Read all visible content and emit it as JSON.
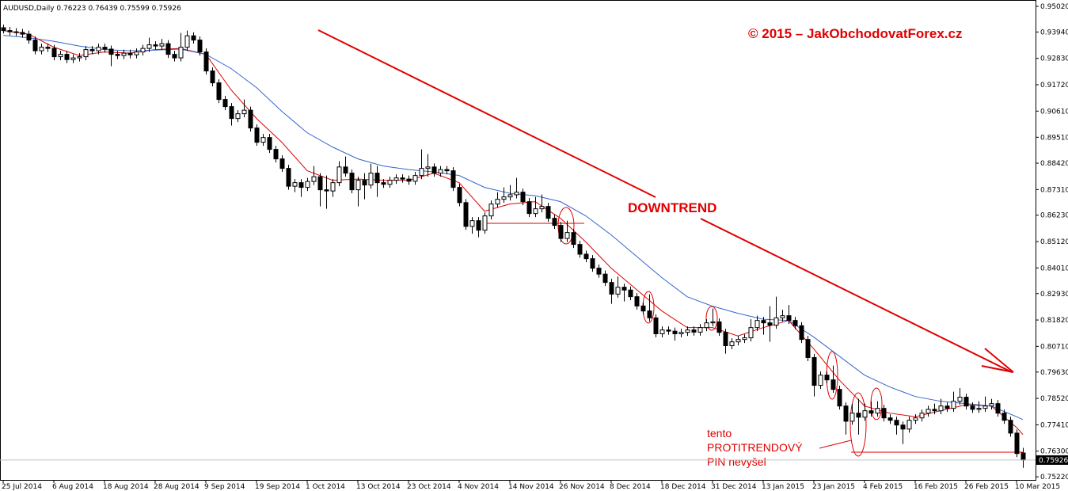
{
  "chart_data": {
    "type": "candlestick",
    "header": "AUDUSD,Daily  0.76223 0.76439 0.75599 0.75926",
    "title": "© 2015 – JakObchodovatForex.cz",
    "annotations": [
      "DOWNTREND",
      "tento",
      "PROTITRENDOVÝ",
      "PIN nevyšel"
    ],
    "ylim": [
      0.7509,
      0.9522
    ],
    "yticks": [
      {
        "value": 0.9502,
        "label": "0.95020"
      },
      {
        "value": 0.9394,
        "label": "0.93940"
      },
      {
        "value": 0.9283,
        "label": "0.92830"
      },
      {
        "value": 0.9172,
        "label": "0.91720"
      },
      {
        "value": 0.9061,
        "label": "0.90610"
      },
      {
        "value": 0.8951,
        "label": "0.89510"
      },
      {
        "value": 0.8842,
        "label": "0.88420"
      },
      {
        "value": 0.8731,
        "label": "0.87310"
      },
      {
        "value": 0.8623,
        "label": "0.86230"
      },
      {
        "value": 0.8512,
        "label": "0.85120"
      },
      {
        "value": 0.8401,
        "label": "0.84010"
      },
      {
        "value": 0.8293,
        "label": "0.82930"
      },
      {
        "value": 0.8182,
        "label": "0.81820"
      },
      {
        "value": 0.8071,
        "label": "0.80710"
      },
      {
        "value": 0.7963,
        "label": "0.79630"
      },
      {
        "value": 0.7852,
        "label": "0.78520"
      },
      {
        "value": 0.7741,
        "label": "0.77410"
      },
      {
        "value": 0.763,
        "label": "0.76300"
      },
      {
        "value": 0.7522,
        "label": "0.75220"
      }
    ],
    "xticks": [
      {
        "value": 0,
        "label": "25 Jul 2014"
      },
      {
        "value": 8,
        "label": "6 Aug 2014"
      },
      {
        "value": 16,
        "label": "18 Aug 2014"
      },
      {
        "value": 24,
        "label": "28 Aug 2014"
      },
      {
        "value": 32,
        "label": "9 Sep 2014"
      },
      {
        "value": 40,
        "label": "19 Sep 2014"
      },
      {
        "value": 48,
        "label": "1 Oct 2014"
      },
      {
        "value": 56,
        "label": "13 Oct 2014"
      },
      {
        "value": 64,
        "label": "23 Oct 2014"
      },
      {
        "value": 72,
        "label": "4 Nov 2014"
      },
      {
        "value": 80,
        "label": "14 Nov 2014"
      },
      {
        "value": 88,
        "label": "26 Nov 2014"
      },
      {
        "value": 96,
        "label": "8 Dec 2014"
      },
      {
        "value": 104,
        "label": "18 Dec 2014"
      },
      {
        "value": 112,
        "label": "31 Dec 2014"
      },
      {
        "value": 120,
        "label": "13 Jan 2015"
      },
      {
        "value": 128,
        "label": "23 Jan 2015"
      },
      {
        "value": 136,
        "label": "4 Feb 2015"
      },
      {
        "value": 144,
        "label": "16 Feb 2015"
      },
      {
        "value": 152,
        "label": "26 Feb 2015"
      },
      {
        "value": 160,
        "label": "10 Mar 2015"
      }
    ],
    "candles": [
      [
        0.9412,
        0.9425,
        0.9388,
        0.94
      ],
      [
        0.94,
        0.9415,
        0.938,
        0.9395
      ],
      [
        0.9395,
        0.941,
        0.9377,
        0.9392
      ],
      [
        0.9392,
        0.9407,
        0.937,
        0.9385
      ],
      [
        0.9385,
        0.94,
        0.9345,
        0.936
      ],
      [
        0.936,
        0.9375,
        0.93,
        0.9315
      ],
      [
        0.9315,
        0.9345,
        0.93,
        0.933
      ],
      [
        0.933,
        0.9345,
        0.931,
        0.9325
      ],
      [
        0.9325,
        0.934,
        0.9275,
        0.929
      ],
      [
        0.929,
        0.9315,
        0.9275,
        0.93
      ],
      [
        0.93,
        0.9315,
        0.9263,
        0.9278
      ],
      [
        0.9278,
        0.93,
        0.9263,
        0.9285
      ],
      [
        0.9285,
        0.9305,
        0.927,
        0.929
      ],
      [
        0.929,
        0.9335,
        0.9275,
        0.932
      ],
      [
        0.932,
        0.9335,
        0.93,
        0.9315
      ],
      [
        0.9315,
        0.9345,
        0.93,
        0.933
      ],
      [
        0.933,
        0.9345,
        0.9307,
        0.9322
      ],
      [
        0.9322,
        0.9337,
        0.925,
        0.93
      ],
      [
        0.93,
        0.9315,
        0.928,
        0.9295
      ],
      [
        0.9295,
        0.932,
        0.928,
        0.9305
      ],
      [
        0.9305,
        0.932,
        0.9283,
        0.9298
      ],
      [
        0.9298,
        0.9325,
        0.9283,
        0.931
      ],
      [
        0.931,
        0.934,
        0.9295,
        0.9325
      ],
      [
        0.9325,
        0.937,
        0.931,
        0.934
      ],
      [
        0.934,
        0.9355,
        0.932,
        0.9335
      ],
      [
        0.9335,
        0.9365,
        0.932,
        0.9345
      ],
      [
        0.9345,
        0.936,
        0.9285,
        0.93
      ],
      [
        0.93,
        0.9315,
        0.927,
        0.9285
      ],
      [
        0.9285,
        0.939,
        0.927,
        0.933
      ],
      [
        0.933,
        0.94,
        0.9315,
        0.9378
      ],
      [
        0.9378,
        0.9393,
        0.9345,
        0.936
      ],
      [
        0.936,
        0.9375,
        0.9295,
        0.931
      ],
      [
        0.931,
        0.9325,
        0.9215,
        0.923
      ],
      [
        0.923,
        0.9245,
        0.9165,
        0.918
      ],
      [
        0.918,
        0.9195,
        0.9095,
        0.911
      ],
      [
        0.911,
        0.9125,
        0.9065,
        0.908
      ],
      [
        0.908,
        0.9095,
        0.9,
        0.903
      ],
      [
        0.903,
        0.9065,
        0.9015,
        0.905
      ],
      [
        0.905,
        0.911,
        0.9035,
        0.9065
      ],
      [
        0.9065,
        0.908,
        0.8975,
        0.899
      ],
      [
        0.899,
        0.9005,
        0.8915,
        0.893
      ],
      [
        0.893,
        0.8965,
        0.8915,
        0.895
      ],
      [
        0.895,
        0.8965,
        0.8885,
        0.89
      ],
      [
        0.89,
        0.8915,
        0.8845,
        0.886
      ],
      [
        0.886,
        0.8875,
        0.8805,
        0.882
      ],
      [
        0.882,
        0.8835,
        0.873,
        0.8745
      ],
      [
        0.8745,
        0.8775,
        0.872,
        0.876
      ],
      [
        0.876,
        0.8775,
        0.87,
        0.874
      ],
      [
        0.874,
        0.878,
        0.8725,
        0.8765
      ],
      [
        0.8765,
        0.883,
        0.875,
        0.8785
      ],
      [
        0.8785,
        0.88,
        0.866,
        0.873
      ],
      [
        0.873,
        0.879,
        0.865,
        0.8725
      ],
      [
        0.8725,
        0.8775,
        0.87,
        0.876
      ],
      [
        0.876,
        0.885,
        0.8745,
        0.8826
      ],
      [
        0.8826,
        0.887,
        0.8785,
        0.88
      ],
      [
        0.88,
        0.8815,
        0.8715,
        0.873
      ],
      [
        0.873,
        0.8785,
        0.866,
        0.877
      ],
      [
        0.877,
        0.88,
        0.869,
        0.875
      ],
      [
        0.875,
        0.884,
        0.8735,
        0.88
      ],
      [
        0.88,
        0.883,
        0.87,
        0.876
      ],
      [
        0.876,
        0.8775,
        0.8738,
        0.8753
      ],
      [
        0.8753,
        0.8785,
        0.8738,
        0.877
      ],
      [
        0.877,
        0.8795,
        0.8755,
        0.878
      ],
      [
        0.878,
        0.8795,
        0.876,
        0.8775
      ],
      [
        0.8775,
        0.879,
        0.8751,
        0.8766
      ],
      [
        0.8766,
        0.8805,
        0.8751,
        0.879
      ],
      [
        0.879,
        0.89,
        0.8775,
        0.882
      ],
      [
        0.882,
        0.888,
        0.8785,
        0.8826
      ],
      [
        0.8826,
        0.8841,
        0.8785,
        0.88
      ],
      [
        0.88,
        0.883,
        0.8785,
        0.8815
      ],
      [
        0.8815,
        0.883,
        0.8795,
        0.881
      ],
      [
        0.881,
        0.8825,
        0.8725,
        0.874
      ],
      [
        0.874,
        0.8755,
        0.8661,
        0.8676
      ],
      [
        0.8676,
        0.8691,
        0.8561,
        0.8576
      ],
      [
        0.8576,
        0.8615,
        0.8545,
        0.86
      ],
      [
        0.86,
        0.8615,
        0.853,
        0.856
      ],
      [
        0.856,
        0.8635,
        0.8545,
        0.862
      ],
      [
        0.862,
        0.8685,
        0.8605,
        0.867
      ],
      [
        0.867,
        0.872,
        0.8655,
        0.869
      ],
      [
        0.869,
        0.874,
        0.8675,
        0.87
      ],
      [
        0.87,
        0.875,
        0.8685,
        0.8709
      ],
      [
        0.8709,
        0.878,
        0.8694,
        0.872
      ],
      [
        0.872,
        0.8735,
        0.8665,
        0.868
      ],
      [
        0.868,
        0.8695,
        0.8615,
        0.863
      ],
      [
        0.863,
        0.87,
        0.8615,
        0.865
      ],
      [
        0.865,
        0.871,
        0.8635,
        0.866
      ],
      [
        0.866,
        0.8675,
        0.8595,
        0.861
      ],
      [
        0.861,
        0.8625,
        0.8565,
        0.858
      ],
      [
        0.858,
        0.8595,
        0.851,
        0.8525
      ],
      [
        0.8525,
        0.86,
        0.851,
        0.855
      ],
      [
        0.855,
        0.8565,
        0.8485,
        0.85
      ],
      [
        0.85,
        0.8515,
        0.8444,
        0.8459
      ],
      [
        0.8459,
        0.8474,
        0.8425,
        0.844
      ],
      [
        0.844,
        0.8455,
        0.8385,
        0.84
      ],
      [
        0.84,
        0.8415,
        0.836,
        0.8375
      ],
      [
        0.8375,
        0.839,
        0.8325,
        0.834
      ],
      [
        0.834,
        0.8355,
        0.825,
        0.8291
      ],
      [
        0.8291,
        0.8365,
        0.8276,
        0.832
      ],
      [
        0.832,
        0.8335,
        0.826,
        0.8308
      ],
      [
        0.8308,
        0.8323,
        0.8265,
        0.828
      ],
      [
        0.828,
        0.8295,
        0.8226,
        0.8241
      ],
      [
        0.8241,
        0.8256,
        0.8205,
        0.822
      ],
      [
        0.822,
        0.829,
        0.8176,
        0.8191
      ],
      [
        0.8191,
        0.8206,
        0.8109,
        0.8124
      ],
      [
        0.8124,
        0.8155,
        0.8109,
        0.814
      ],
      [
        0.814,
        0.8155,
        0.812,
        0.8135
      ],
      [
        0.8135,
        0.815,
        0.8095,
        0.8124
      ],
      [
        0.8124,
        0.8145,
        0.8109,
        0.813
      ],
      [
        0.813,
        0.8155,
        0.8115,
        0.814
      ],
      [
        0.814,
        0.8155,
        0.8116,
        0.8131
      ],
      [
        0.8131,
        0.8165,
        0.8116,
        0.815
      ],
      [
        0.815,
        0.8185,
        0.8135,
        0.817
      ],
      [
        0.817,
        0.823,
        0.8155,
        0.8174
      ],
      [
        0.8174,
        0.8189,
        0.8115,
        0.813
      ],
      [
        0.813,
        0.8145,
        0.804,
        0.8074
      ],
      [
        0.8074,
        0.8105,
        0.8059,
        0.809
      ],
      [
        0.809,
        0.8115,
        0.8075,
        0.81
      ],
      [
        0.81,
        0.8122,
        0.8085,
        0.8107
      ],
      [
        0.8107,
        0.8185,
        0.8092,
        0.815
      ],
      [
        0.815,
        0.82,
        0.8135,
        0.818
      ],
      [
        0.818,
        0.8195,
        0.812,
        0.817
      ],
      [
        0.817,
        0.824,
        0.809,
        0.816
      ],
      [
        0.816,
        0.828,
        0.8145,
        0.8191
      ],
      [
        0.8191,
        0.8225,
        0.8176,
        0.82
      ],
      [
        0.82,
        0.8245,
        0.8165,
        0.818
      ],
      [
        0.818,
        0.8195,
        0.8143,
        0.8158
      ],
      [
        0.8158,
        0.8173,
        0.8085,
        0.81
      ],
      [
        0.81,
        0.8115,
        0.8009,
        0.8024
      ],
      [
        0.8024,
        0.8039,
        0.786,
        0.7907
      ],
      [
        0.7907,
        0.7965,
        0.7892,
        0.795
      ],
      [
        0.795,
        0.7965,
        0.7915,
        0.793
      ],
      [
        0.793,
        0.799,
        0.7875,
        0.789
      ],
      [
        0.789,
        0.7905,
        0.7805,
        0.782
      ],
      [
        0.782,
        0.7835,
        0.77,
        0.7756
      ],
      [
        0.7756,
        0.783,
        0.7741,
        0.779
      ],
      [
        0.779,
        0.785,
        0.77,
        0.7773
      ],
      [
        0.7773,
        0.783,
        0.7758,
        0.78
      ],
      [
        0.78,
        0.784,
        0.7775,
        0.779
      ],
      [
        0.779,
        0.784,
        0.7775,
        0.781
      ],
      [
        0.781,
        0.7825,
        0.7755,
        0.777
      ],
      [
        0.777,
        0.7785,
        0.7745,
        0.776
      ],
      [
        0.776,
        0.7775,
        0.77,
        0.774
      ],
      [
        0.774,
        0.7755,
        0.766,
        0.7723
      ],
      [
        0.7723,
        0.7775,
        0.7708,
        0.776
      ],
      [
        0.776,
        0.7785,
        0.7745,
        0.777
      ],
      [
        0.777,
        0.7805,
        0.7755,
        0.779
      ],
      [
        0.779,
        0.7821,
        0.7775,
        0.7806
      ],
      [
        0.7806,
        0.783,
        0.7785,
        0.78
      ],
      [
        0.78,
        0.785,
        0.7785,
        0.782
      ],
      [
        0.782,
        0.7835,
        0.7795,
        0.781
      ],
      [
        0.781,
        0.788,
        0.7795,
        0.784
      ],
      [
        0.784,
        0.7895,
        0.7825,
        0.7857
      ],
      [
        0.7857,
        0.7872,
        0.7805,
        0.782
      ],
      [
        0.782,
        0.7835,
        0.7791,
        0.7806
      ],
      [
        0.7806,
        0.784,
        0.7791,
        0.781
      ],
      [
        0.781,
        0.786,
        0.7795,
        0.782
      ],
      [
        0.782,
        0.785,
        0.7805,
        0.783
      ],
      [
        0.783,
        0.7845,
        0.7775,
        0.779
      ],
      [
        0.779,
        0.7805,
        0.7745,
        0.776
      ],
      [
        0.776,
        0.7775,
        0.7691,
        0.7706
      ],
      [
        0.7706,
        0.7721,
        0.7605,
        0.762
      ],
      [
        0.76223,
        0.76439,
        0.75599,
        0.75926
      ]
    ],
    "series": [
      {
        "color": "#e00000",
        "x": [
          0,
          4,
          8,
          12,
          16,
          20,
          24,
          28,
          32,
          36,
          40,
          44,
          48,
          52,
          56,
          60,
          64,
          68,
          72,
          76,
          80,
          84,
          88,
          92,
          96,
          100,
          104,
          108,
          112,
          116,
          120,
          124,
          128,
          132,
          136,
          140,
          144,
          148,
          152,
          156,
          160,
          161
        ],
        "values": [
          0.94,
          0.9385,
          0.933,
          0.9295,
          0.931,
          0.9305,
          0.932,
          0.9325,
          0.93,
          0.915,
          0.903,
          0.893,
          0.881,
          0.877,
          0.8775,
          0.877,
          0.877,
          0.88,
          0.876,
          0.864,
          0.867,
          0.868,
          0.861,
          0.851,
          0.84,
          0.831,
          0.822,
          0.815,
          0.815,
          0.8115,
          0.815,
          0.818,
          0.806,
          0.793,
          0.782,
          0.779,
          0.7775,
          0.78,
          0.7825,
          0.782,
          0.773,
          0.77
        ]
      },
      {
        "color": "#3366cc",
        "x": [
          0,
          4,
          8,
          12,
          16,
          20,
          24,
          28,
          32,
          36,
          40,
          44,
          48,
          52,
          56,
          60,
          64,
          68,
          72,
          76,
          80,
          84,
          88,
          92,
          96,
          100,
          104,
          108,
          112,
          116,
          120,
          124,
          128,
          132,
          136,
          140,
          144,
          148,
          152,
          156,
          160,
          161
        ],
        "values": [
          0.938,
          0.937,
          0.9355,
          0.9335,
          0.932,
          0.9315,
          0.9318,
          0.9322,
          0.93,
          0.924,
          0.916,
          0.906,
          0.897,
          0.891,
          0.886,
          0.883,
          0.8815,
          0.8805,
          0.879,
          0.874,
          0.8715,
          0.8705,
          0.868,
          0.862,
          0.854,
          0.845,
          0.836,
          0.828,
          0.824,
          0.821,
          0.8185,
          0.818,
          0.811,
          0.803,
          0.795,
          0.79,
          0.786,
          0.784,
          0.783,
          0.782,
          0.7775,
          0.7763
        ]
      }
    ]
  }
}
